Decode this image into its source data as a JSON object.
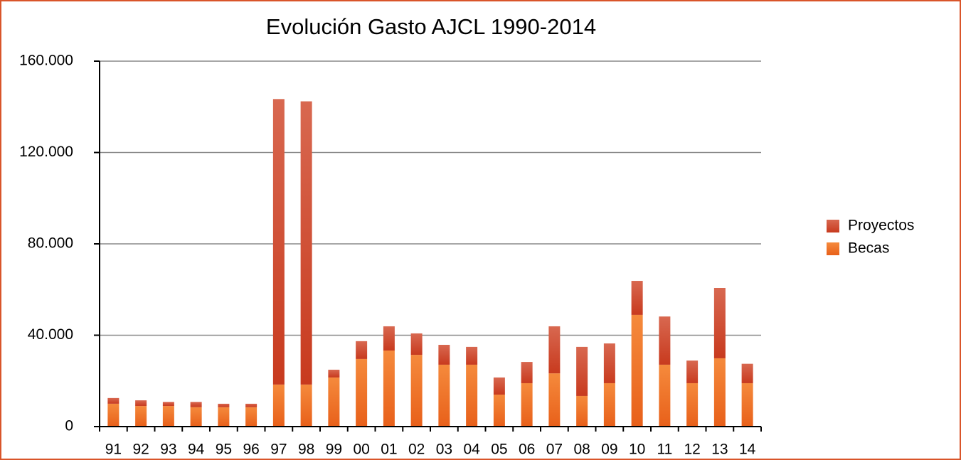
{
  "chart_data": {
    "type": "stacked-bar",
    "title": "Evolución Gasto AJCL 1990-2014",
    "categories": [
      "91",
      "92",
      "93",
      "94",
      "95",
      "96",
      "97",
      "98",
      "99",
      "00",
      "01",
      "02",
      "03",
      "04",
      "05",
      "06",
      "07",
      "08",
      "09",
      "10",
      "11",
      "12",
      "13",
      "14"
    ],
    "series": [
      {
        "name": "Becas",
        "color": "#f07020",
        "values": [
          10000,
          9000,
          9000,
          8500,
          8500,
          8500,
          18400,
          18400,
          21500,
          29600,
          33300,
          31400,
          27100,
          27100,
          14000,
          19000,
          23300,
          13400,
          19000,
          48900,
          27100,
          19000,
          29900,
          19000
        ]
      },
      {
        "name": "Proyectos",
        "color": "#d04424",
        "values": [
          2500,
          2500,
          1800,
          2300,
          1500,
          1500,
          125000,
          124000,
          3400,
          7800,
          10600,
          9400,
          8700,
          7800,
          7500,
          9300,
          20600,
          21500,
          17400,
          14900,
          21100,
          9900,
          30800,
          8500
        ]
      }
    ],
    "ylim": [
      0,
      160000
    ],
    "yticks": [
      0,
      {
        "value": 40000,
        "label": "40.000"
      },
      {
        "value": 80000,
        "label": "80.000"
      },
      {
        "value": 120000,
        "label": "120.000"
      },
      {
        "value": 160000,
        "label": "160.000"
      }
    ],
    "grid": true,
    "legend": "right"
  }
}
